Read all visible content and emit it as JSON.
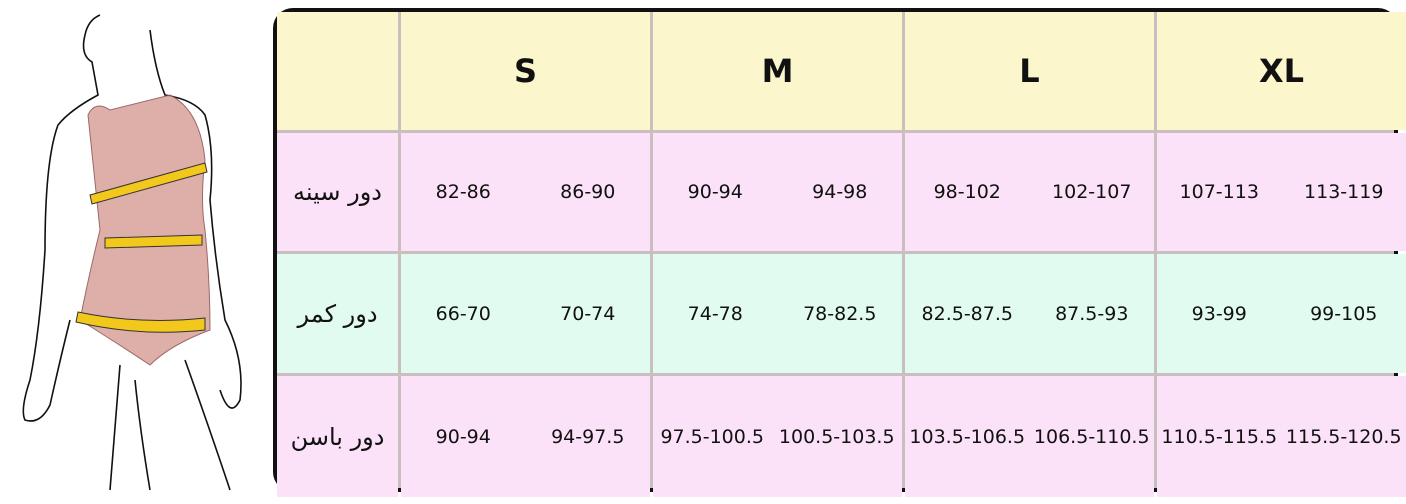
{
  "colors": {
    "header": "#fbf6cb",
    "pink_row": "#fbe2f8",
    "mint_row": "#e2fbf1",
    "border": "#111111",
    "tape": "#f2c81c",
    "body_fill": "#d9a09a"
  },
  "sizes": [
    "S",
    "M",
    "L",
    "XL"
  ],
  "rows": [
    {
      "label": "دور سینه",
      "values": [
        [
          "82-86",
          "86-90"
        ],
        [
          "90-94",
          "94-98"
        ],
        [
          "98-102",
          "102-107"
        ],
        [
          "107-113",
          "113-119"
        ]
      ]
    },
    {
      "label": "دور کمر",
      "values": [
        [
          "66-70",
          "70-74"
        ],
        [
          "74-78",
          "78-82.5"
        ],
        [
          "82.5-87.5",
          "87.5-93"
        ],
        [
          "93-99",
          "99-105"
        ]
      ]
    },
    {
      "label": "دور باسن",
      "values": [
        [
          "90-94",
          "94-97.5"
        ],
        [
          "97.5-100.5",
          "100.5-103.5"
        ],
        [
          "103.5-106.5",
          "106.5-110.5"
        ],
        [
          "110.5-115.5",
          "115.5-120.5"
        ]
      ]
    }
  ]
}
